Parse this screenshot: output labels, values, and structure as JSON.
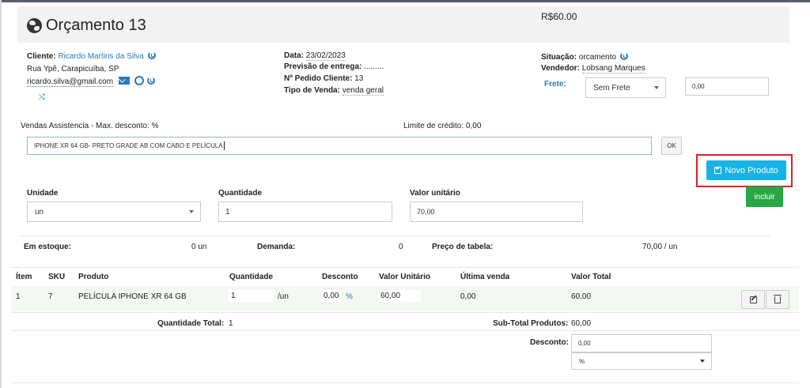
{
  "header": {
    "title": "Orçamento 13",
    "total": "R$60.00"
  },
  "client": {
    "label": "Cliente:",
    "name": "Ricardo Martins da Silva",
    "address": "Rua Ypê, Carapicuíba, SP",
    "email": "ricardo.silva@gmail.com"
  },
  "order": {
    "date_label": "Data:",
    "date": "23/02/2023",
    "forecast_label": "Previsão de entrega:",
    "forecast": ".........",
    "client_order_label": "Nº Pedido Cliente:",
    "client_order": "13",
    "sale_type_label": "Tipo de Venda:",
    "sale_type": "venda geral"
  },
  "status": {
    "situation_label": "Situação:",
    "situation": "orcamento",
    "seller_label": "Vendedor:",
    "seller": "Lobsang Marques",
    "freight_label": "Frete:",
    "freight_option": "Sem Frete",
    "freight_value": "0,00"
  },
  "info": {
    "discount_note": "Vendas Assistencia - Max. desconto: %",
    "credit_limit": "Limite de crédito: 0,00"
  },
  "product_search": {
    "value": "IPHONE XR 64 GB- PRETO GRADE AB COM CABO E PELÍCULA",
    "ok_label": "OK",
    "new_product_label": "Novo Produto"
  },
  "add_form": {
    "unit_label": "Unidade",
    "unit_value": "un",
    "qty_label": "Quantidade",
    "qty_value": "1",
    "unit_price_label": "Valor unitário",
    "unit_price_value": "70,00",
    "include_label": "incluir"
  },
  "stock": {
    "in_stock_label": "Em estoque:",
    "in_stock_value": "0 un",
    "demand_label": "Demanda:",
    "demand_value": "0",
    "table_price_label": "Preço de tabela:",
    "table_price_value": "70,00 / un"
  },
  "items_table": {
    "headers": [
      "Ítem",
      "SKU",
      "Produto",
      "Quantidade",
      "Desconto",
      "Valor Unitário",
      "Última venda",
      "Valor Total"
    ],
    "rows": [
      {
        "item": "1",
        "sku": "7",
        "product": "PELÍCULA IPHONE XR 64 GB",
        "qty": "1",
        "unit": "/un",
        "discount": "0,00",
        "discount_unit": "%",
        "unit_price": "60,00",
        "last_sale": "0,00",
        "total": "60,00"
      }
    ]
  },
  "totals": {
    "qty_total_label": "Quantidade Total:",
    "qty_total": "1",
    "subtotal_label": "Sub-Total Produtos:",
    "subtotal": "60,00",
    "discount_label": "Desconto:",
    "discount_value": "0,00",
    "discount_type": "%"
  }
}
